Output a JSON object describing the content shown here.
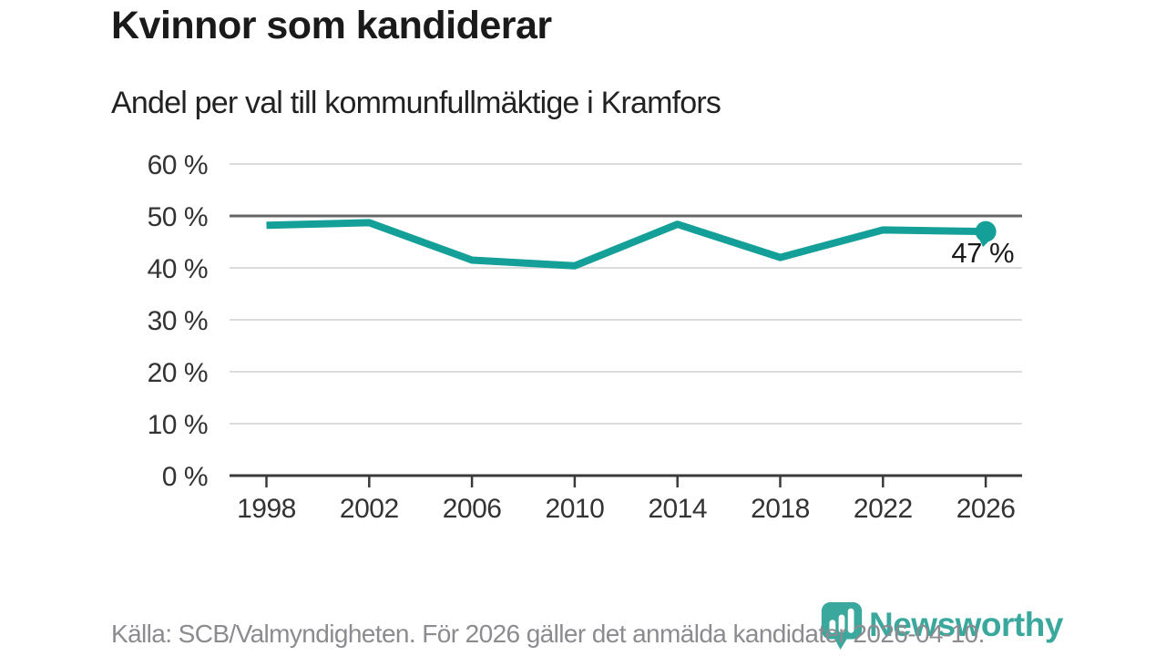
{
  "page": {
    "background": "#ffffff"
  },
  "header": {
    "title": "Kvinnor som kandiderar",
    "subtitle": "Andel per val till kommunfullmäktige i Kramfors"
  },
  "chart_data": {
    "type": "line",
    "title": "Kvinnor som kandiderar",
    "subtitle": "Andel per val till kommunfullmäktige i Kramfors",
    "categories": [
      "1998",
      "2002",
      "2006",
      "2010",
      "2014",
      "2018",
      "2022",
      "2026"
    ],
    "values": [
      48.2,
      48.7,
      41.5,
      40.4,
      48.4,
      42,
      47.3,
      47
    ],
    "unit": "%",
    "ylim": [
      0,
      60
    ],
    "yticks": [
      0,
      10,
      20,
      30,
      40,
      50,
      60
    ],
    "ytick_suffix": " %",
    "grid": true,
    "reference_line": 50,
    "end_point_label": "47 %",
    "line_color": "#14a098",
    "reference_line_color": "#666666",
    "grid_color": "#dcdcdc",
    "axis_color": "#3a3a3a",
    "legend": "none"
  },
  "footer": {
    "source": "Källa: SCB/Valmyndigheten. För 2026 gäller det anmälda kandidater 2026-04-10.",
    "logo": {
      "text": "Newsworthy",
      "icon": "newsworthy-barchart-pin-icon",
      "color": "#3aa89d"
    }
  }
}
